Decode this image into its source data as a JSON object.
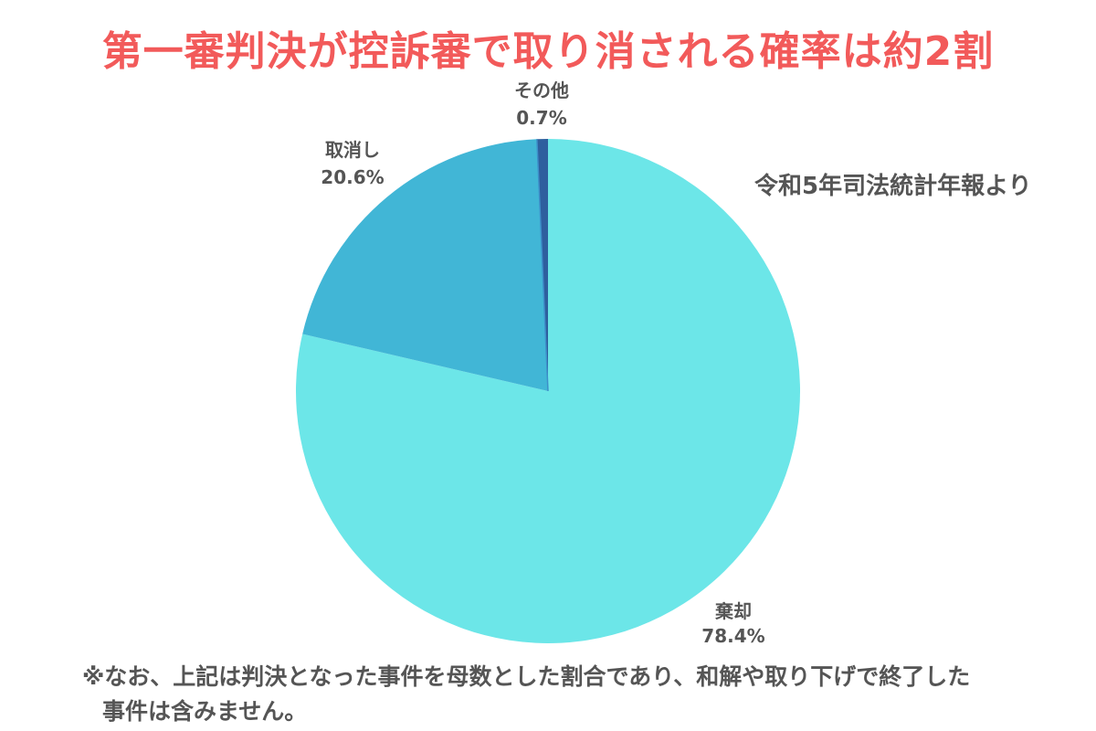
{
  "title": "第一審判決が控訴審で取り消される確率は約2割",
  "source_note": "令和5年司法統計年報より",
  "footnote": {
    "line1": "※なお、上記は判決となった事件を母数とした割合であり、和解や取り下げで終了した",
    "line2": "事件は含みません。"
  },
  "colors": {
    "title": "#f25a5a",
    "label_text": "#555555",
    "kikyaku": "#6ce6e8",
    "torikeshi": "#41b6d6",
    "sonota_main": "#2e5f9e",
    "sonota_thin": "#3d8fc9"
  },
  "chart_data": {
    "type": "pie",
    "title": "第一審判決が控訴審で取り消される確率は約2割",
    "unit": "%",
    "slices": [
      {
        "name": "棄却",
        "value": 78.4,
        "value_label": "78.4%",
        "color": "#6ce6e8"
      },
      {
        "name": "取消し",
        "value": 20.6,
        "value_label": "20.6%",
        "color": "#41b6d6"
      },
      {
        "name": "その他",
        "value": 0.7,
        "value_label": "0.7%",
        "color": "#2e5f9e"
      }
    ],
    "start_angle": "12 o'clock",
    "direction": "clockwise",
    "legend": "none",
    "labels": "outside"
  }
}
